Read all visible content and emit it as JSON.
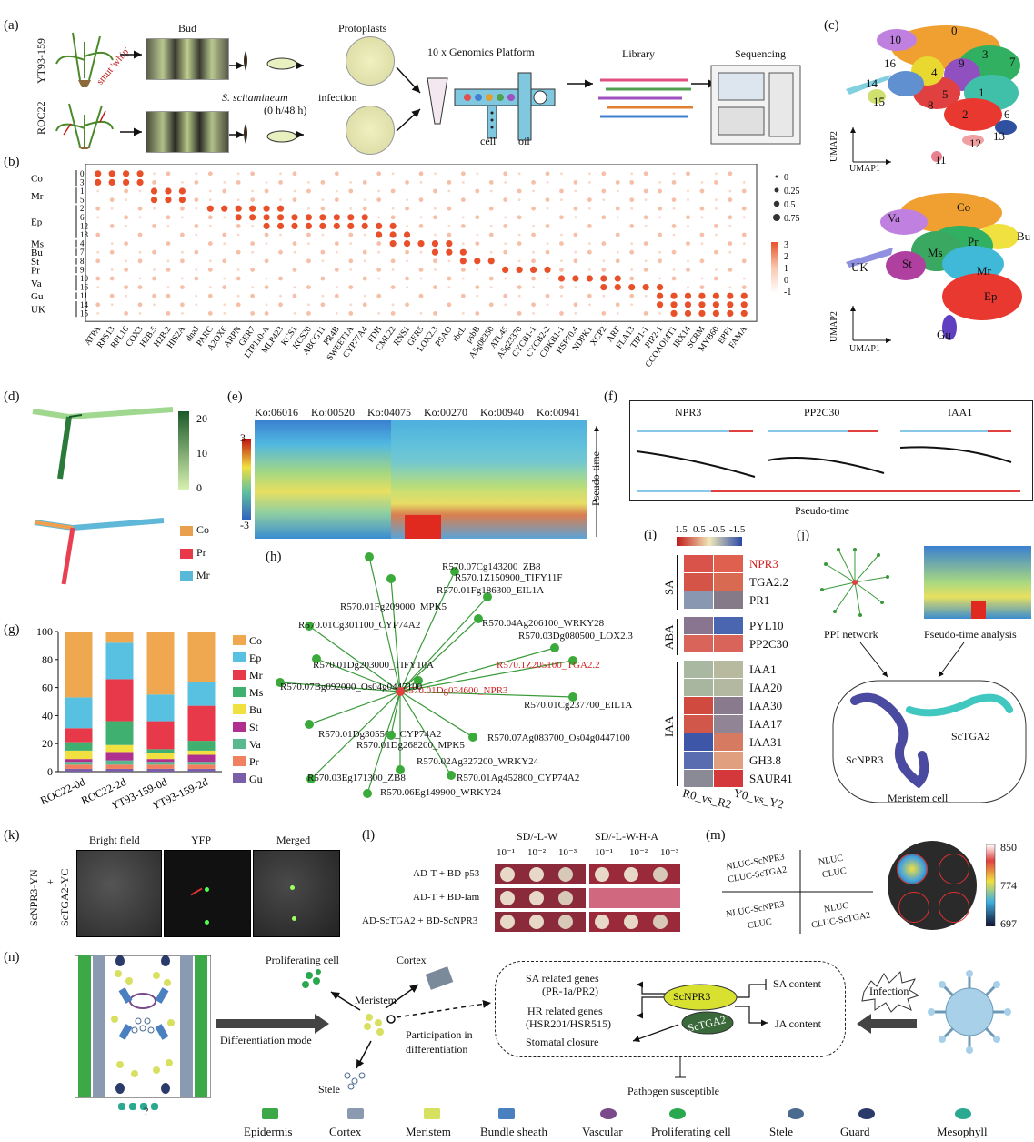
{
  "panels": {
    "a": "(a)",
    "b": "(b)",
    "c": "(c)",
    "d": "(d)",
    "e": "(e)",
    "f": "(f)",
    "g": "(g)",
    "h": "(h)",
    "i": "(i)",
    "j": "(j)",
    "k": "(k)",
    "l": "(l)",
    "m": "(m)",
    "n": "(n)"
  },
  "a": {
    "var1": "YT93-159",
    "var2": "ROC22",
    "smut": "smut 'whip'",
    "bud": "Bud",
    "protoplasts": "Protoplasts",
    "infection1": "S. scitamineum",
    "infection2": " infection",
    "infection3": "(0 h/48 h)",
    "platform": "10 x Genomics Platform",
    "cell": "cell",
    "oil": "oil",
    "library": "Library",
    "sequencing": "Sequencing"
  },
  "b": {
    "row_groups": [
      "Co",
      "Mr",
      "Ep",
      "Ms",
      "Bu",
      "St",
      "Pr",
      "Va",
      "Gu",
      "UK"
    ],
    "clusters": [
      "0",
      "3",
      "1",
      "5",
      "2",
      "6",
      "12",
      "13",
      "4",
      "7",
      "8",
      "9",
      "10",
      "16",
      "11",
      "14",
      "15"
    ],
    "genes": [
      "ATPA",
      "RPS13",
      "RPL16",
      "COX3",
      "H2B.5",
      "H2B.2",
      "HIS2A",
      "dnaJ",
      "PARC",
      "A2OX6",
      "ARPN",
      "GER7",
      "LTP110-A",
      "MLP423",
      "KCS1",
      "KCS20",
      "ABCG11",
      "PR4B",
      "SWEET1A",
      "CYP77A4",
      "FDH",
      "CML22",
      "RNS1",
      "GER5",
      "LOX2.3",
      "PSAO",
      "rbcL",
      "psbB",
      "A5g08350",
      "ATL45",
      "A5g23370",
      "CYCB1-1",
      "CYCB2-2",
      "CDKB1-1",
      "HSP70.4",
      "NDPK1",
      "XCP2",
      "ARF",
      "FLA13",
      "TIP1-1",
      "PIP2-1",
      "CCOAOMT1",
      "IRX14",
      "SCRM",
      "MYB60",
      "EPF1",
      "FAMA"
    ],
    "size_legend": [
      "0",
      "0.25",
      "0.5",
      "0.75"
    ],
    "color_legend": [
      "3",
      "2",
      "1",
      "0",
      "-1"
    ]
  },
  "c": {
    "umap1": "UMAP1",
    "umap2": "UMAP2",
    "cluster_labels": [
      "0",
      "1",
      "2",
      "3",
      "4",
      "5",
      "6",
      "7",
      "8",
      "9",
      "10",
      "11",
      "12",
      "13",
      "14",
      "15",
      "16"
    ],
    "type_labels": [
      "Co",
      "Bu",
      "Va",
      "Pr",
      "Ms",
      "Mr",
      "UK",
      "St",
      "Ep",
      "Gu"
    ]
  },
  "d": {
    "scale": [
      "20",
      "10",
      "0"
    ],
    "legend": [
      "Co",
      "Pr",
      "Mr"
    ],
    "legend_colors": [
      "#e8a050",
      "#e8394a",
      "#5ab8d8"
    ]
  },
  "e": {
    "kos": [
      "Ko:06016",
      "Ko:00520",
      "Ko:04075",
      "Ko:00270",
      "Ko:00940",
      "Ko:00941"
    ],
    "scale": [
      "3",
      "-3"
    ],
    "ylabel": "Pseudo-time"
  },
  "f": {
    "genes": [
      "NPR3",
      "PP2C30",
      "IAA1"
    ],
    "xlabel": "Pseudo-time"
  },
  "g": {
    "chart_data": {
      "type": "bar",
      "categories": [
        "ROC22-0d",
        "ROC22-2d",
        "YT93-159-0d",
        "YT93-159-2d"
      ],
      "ylim": [
        0,
        100
      ],
      "yticks": [
        "0",
        "20",
        "40",
        "60",
        "80",
        "100"
      ],
      "series": [
        {
          "name": "Gu",
          "color": "#7b5ea8",
          "values": [
            2,
            2,
            2,
            2
          ]
        },
        {
          "name": "Pr",
          "color": "#f08060",
          "values": [
            3,
            3,
            3,
            3
          ]
        },
        {
          "name": "Va",
          "color": "#58b890",
          "values": [
            2,
            3,
            2,
            2
          ]
        },
        {
          "name": "St",
          "color": "#b03090",
          "values": [
            2,
            6,
            2,
            5
          ]
        },
        {
          "name": "Bu",
          "color": "#f0e040",
          "values": [
            6,
            5,
            4,
            3
          ]
        },
        {
          "name": "Ms",
          "color": "#40b070",
          "values": [
            6,
            17,
            3,
            7
          ]
        },
        {
          "name": "Mr",
          "color": "#e8394a",
          "values": [
            10,
            30,
            20,
            25
          ]
        },
        {
          "name": "Ep",
          "color": "#58c0e0",
          "values": [
            22,
            26,
            19,
            17
          ]
        },
        {
          "name": "Co",
          "color": "#f0a850",
          "values": [
            47,
            8,
            45,
            36
          ]
        }
      ]
    },
    "legend_order": [
      "Co",
      "Ep",
      "Mr",
      "Ms",
      "Bu",
      "St",
      "Va",
      "Pr",
      "Gu"
    ]
  },
  "h": {
    "nodes": [
      {
        "label": "R570.07Cg143200_ZB8",
        "hl": false
      },
      {
        "label": "R570.1Z150900_TIFY11F",
        "hl": false
      },
      {
        "label": "R570.01Fg186300_EIL1A",
        "hl": false
      },
      {
        "label": "R570.01Fg209000_MPK5",
        "hl": false
      },
      {
        "label": "R570.04Ag206100_WRKY28",
        "hl": false
      },
      {
        "label": "R570.01Cg301100_CYP74A2",
        "hl": false
      },
      {
        "label": "R570.03Dg080500_LOX2.3",
        "hl": false
      },
      {
        "label": "R570.01Dg203000_TIFY10A",
        "hl": false
      },
      {
        "label": "R570.1Z205100_TGA2.2",
        "hl": true
      },
      {
        "label": "R570.01Dg034600_NPR3",
        "hl": true
      },
      {
        "label": "R570.07Bg092000_Os04g0447100",
        "hl": false
      },
      {
        "label": "R570.01Cg237700_EIL1A",
        "hl": false
      },
      {
        "label": "R570.01Dg305500_CYP74A2",
        "hl": false
      },
      {
        "label": "R570.07Ag083700_Os04g0447100",
        "hl": false
      },
      {
        "label": "R570.01Dg268200_MPK5",
        "hl": false
      },
      {
        "label": "R570.02Ag327200_WRKY24",
        "hl": false
      },
      {
        "label": "R570.03Eg171300_ZB8",
        "hl": false
      },
      {
        "label": "R570.01Ag452800_CYP74A2",
        "hl": false
      },
      {
        "label": "R570.06Eg149900_WRKY24",
        "hl": false
      }
    ]
  },
  "i": {
    "scale": [
      "1.5",
      "0.5",
      "-0.5",
      "-1.5"
    ],
    "groups": [
      "SA",
      "ABA",
      "IAA"
    ],
    "rows": [
      {
        "gene": "NPR3",
        "hl": true,
        "c1": "#d9534a",
        "c2": "#e06050"
      },
      {
        "gene": "TGA2.2",
        "hl": false,
        "c1": "#d45448",
        "c2": "#d96a52"
      },
      {
        "gene": "PR1",
        "hl": false,
        "c1": "#8a97b0",
        "c2": "#857a88"
      },
      {
        "gene": "PYL10",
        "hl": false,
        "c1": "#8a7590",
        "c2": "#4a66b0"
      },
      {
        "gene": "PP2C30",
        "hl": false,
        "c1": "#d9645a",
        "c2": "#d9645a"
      },
      {
        "gene": "IAA1",
        "hl": false,
        "c1": "#a9b8a0",
        "c2": "#b8baa0"
      },
      {
        "gene": "IAA20",
        "hl": false,
        "c1": "#a8b6a0",
        "c2": "#b3b9a0"
      },
      {
        "gene": "IAA30",
        "hl": false,
        "c1": "#d04a40",
        "c2": "#8a7a8e"
      },
      {
        "gene": "IAA17",
        "hl": false,
        "c1": "#d2574b",
        "c2": "#918495"
      },
      {
        "gene": "IAA31",
        "hl": false,
        "c1": "#3d56a8",
        "c2": "#d77a62"
      },
      {
        "gene": "GH3.8",
        "hl": false,
        "c1": "#5a6cb0",
        "c2": "#e0a080"
      },
      {
        "gene": "SAUR41",
        "hl": false,
        "c1": "#8a8a96",
        "c2": "#d5383a"
      }
    ],
    "cols": [
      "R0_vs_R2",
      "Y0_vs_Y2"
    ]
  },
  "j": {
    "ppi": "PPI network",
    "pseudo": "Pseudo-time analysis",
    "npr3": "ScNPR3",
    "tga2": "ScTGA2",
    "meristem": "Meristem cell"
  },
  "k": {
    "bright": "Bright field",
    "yfp": "YFP",
    "merged": "Merged",
    "yn": "ScNPR3-YN",
    "plus": "+",
    "yc": "ScTGA2-YC"
  },
  "l": {
    "sd1": "SD/-L-W",
    "sd2": "SD/-L-W-H-A",
    "dil": [
      "10⁻¹",
      "10⁻²",
      "10⁻³"
    ],
    "rows": [
      "AD-T + BD-p53",
      "AD-T + BD-lam",
      "AD-ScTGA2 + BD-ScNPR3"
    ]
  },
  "m": {
    "q1a": "NLUC-ScNPR3",
    "q1b": "CLUC-ScTGA2",
    "q2a": "NLUC",
    "q2b": "CLUC",
    "q3a": "NLUC-ScNPR3",
    "q3b": "CLUC",
    "q4a": "NLUC",
    "q4b": "CLUC-ScTGA2",
    "scale": [
      "850",
      "774",
      "697"
    ]
  },
  "n": {
    "prolif": "Proliferating cell",
    "cortex": "Cortex",
    "meristem": "Meristem",
    "diff": "Differentiation mode",
    "particip1": "Participation in",
    "particip2": "differentiation",
    "stele": "Stele",
    "q": "?",
    "sa1": "SA related genes",
    "sa2": "(PR-1a/PR2)",
    "hr1": "HR related genes",
    "hr2": "(HSR201/HSR515)",
    "stomatal": "Stomatal closure",
    "npr3": "ScNPR3",
    "tga2": "ScTGA2",
    "sacontent": "SA content",
    "jacontent": "JA content",
    "infection": "Infection",
    "pathogen": "Pathogen susceptible",
    "legend": [
      "Epidermis",
      "Cortex",
      "Meristem",
      "Bundle sheath",
      "Vascular",
      "Proliferating cell",
      "Stele",
      "Guard",
      "Mesophyll"
    ]
  }
}
